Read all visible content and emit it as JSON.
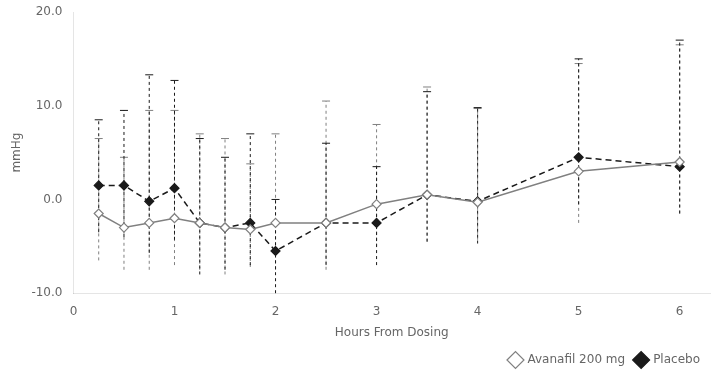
{
  "chart_data": {
    "type": "line",
    "x": [
      0.25,
      0.5,
      0.75,
      1.0,
      1.25,
      1.5,
      1.75,
      2.0,
      2.5,
      3.0,
      3.5,
      4.0,
      5.0,
      6.0
    ],
    "series": [
      {
        "name": "Avanafil 200 mg",
        "color": "#808080",
        "marker": "diamond",
        "line_style": "solid",
        "values": [
          -1.5,
          -3.0,
          -2.5,
          -2.0,
          -2.5,
          -3.0,
          -3.2,
          -2.5,
          -2.5,
          -0.5,
          0.5,
          -0.3,
          3.0,
          4.0
        ],
        "error_up": [
          8.0,
          7.5,
          12.0,
          11.5,
          9.5,
          9.5,
          7.0,
          9.5,
          13.0,
          8.5,
          11.5,
          10.0,
          11.5,
          12.5
        ],
        "error_down": [
          5.0,
          4.5,
          5.0,
          5.0,
          5.0,
          5.0,
          4.0,
          5.0,
          5.0,
          4.5,
          5.0,
          4.0,
          5.5,
          5.5
        ]
      },
      {
        "name": "Placebo",
        "color": "#1a1a1a",
        "marker": "diamond",
        "line_style": "dashed",
        "values": [
          1.5,
          1.5,
          -0.2,
          1.2,
          -2.5,
          -3.0,
          -2.5,
          -5.5,
          -2.5,
          -2.5,
          0.5,
          -0.2,
          4.5,
          3.5
        ],
        "error_up": [
          7.0,
          8.0,
          13.5,
          11.5,
          9.0,
          7.5,
          9.5,
          5.5,
          8.5,
          6.0,
          11.0,
          10.0,
          10.5,
          13.5
        ],
        "error_down": [
          5.0,
          5.5,
          5.5,
          5.5,
          5.5,
          4.5,
          4.5,
          4.5,
          4.5,
          4.5,
          5.0,
          4.5,
          5.0,
          5.0
        ]
      }
    ],
    "xlabel": "Hours From Dosing",
    "ylabel": "mmHg",
    "xlim": [
      0.0,
      6.3
    ],
    "xticks": [
      0,
      1,
      2,
      3,
      4,
      5,
      6
    ],
    "ylim": [
      -10.0,
      20.0
    ],
    "yticks": [
      {
        "value": -10.0,
        "label": "-10.0"
      },
      {
        "value": 0.0,
        "label": "0.0"
      },
      {
        "value": 10.0,
        "label": "10.0"
      },
      {
        "value": 20.0,
        "label": "20.0"
      }
    ],
    "grid": false,
    "legend": "lower right"
  }
}
